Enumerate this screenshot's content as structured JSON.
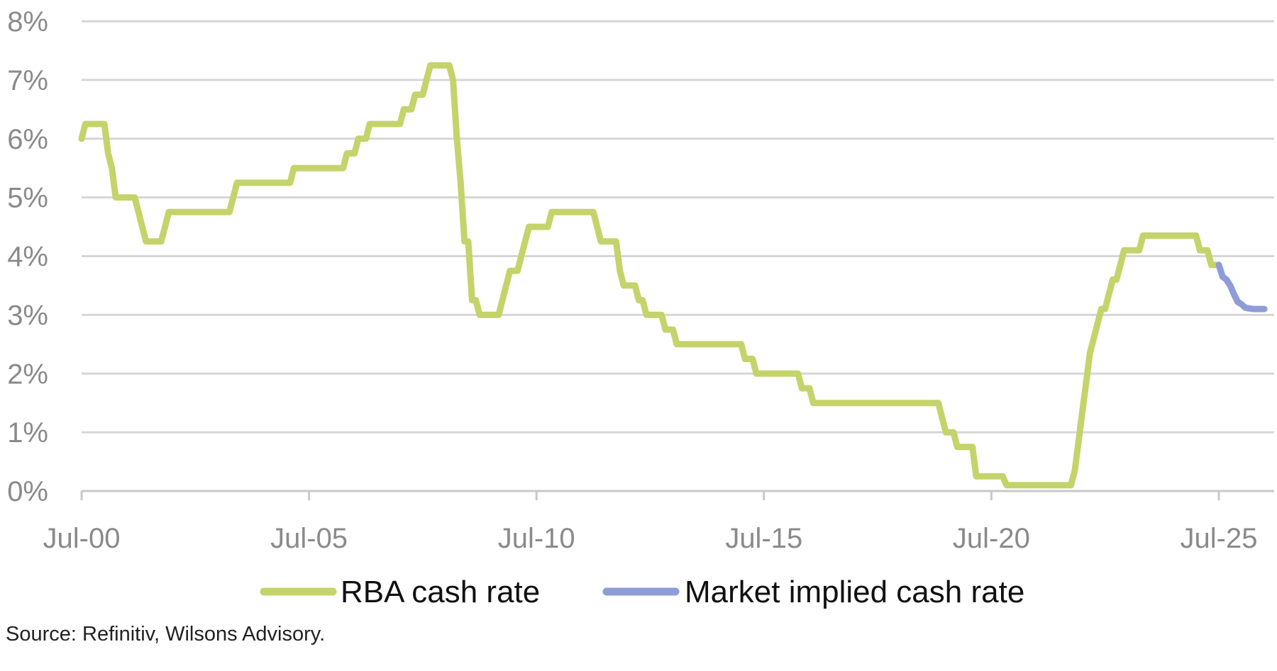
{
  "chart_data": {
    "type": "line",
    "title": "",
    "xlabel": "",
    "ylabel": "",
    "x_range": [
      "2000-07",
      "2026-07"
    ],
    "ylim": [
      0,
      8
    ],
    "y_ticks": [
      0,
      1,
      2,
      3,
      4,
      5,
      6,
      7,
      8
    ],
    "y_tick_labels": [
      "0%",
      "1%",
      "2%",
      "3%",
      "4%",
      "5%",
      "6%",
      "7%",
      "8%"
    ],
    "x_ticks": [
      "2000-07",
      "2005-07",
      "2010-07",
      "2015-07",
      "2020-07",
      "2025-07"
    ],
    "x_tick_labels": [
      "Jul-00",
      "Jul-05",
      "Jul-10",
      "Jul-15",
      "Jul-20",
      "Jul-25"
    ],
    "grid": "horizontal",
    "legend_position": "bottom",
    "series": [
      {
        "name": "RBA cash rate",
        "color": "#c5d36b",
        "points": [
          [
            "2000-07",
            6.0
          ],
          [
            "2000-08",
            6.25
          ],
          [
            "2000-12",
            6.25
          ],
          [
            "2001-01",
            6.25
          ],
          [
            "2001-02",
            5.75
          ],
          [
            "2001-03",
            5.5
          ],
          [
            "2001-04",
            5.0
          ],
          [
            "2001-09",
            5.0
          ],
          [
            "2001-10",
            4.75
          ],
          [
            "2001-11",
            4.5
          ],
          [
            "2001-12",
            4.25
          ],
          [
            "2002-04",
            4.25
          ],
          [
            "2002-05",
            4.5
          ],
          [
            "2002-06",
            4.75
          ],
          [
            "2003-10",
            4.75
          ],
          [
            "2003-11",
            5.0
          ],
          [
            "2003-12",
            5.25
          ],
          [
            "2005-02",
            5.25
          ],
          [
            "2005-03",
            5.5
          ],
          [
            "2006-04",
            5.5
          ],
          [
            "2006-05",
            5.75
          ],
          [
            "2006-07",
            5.75
          ],
          [
            "2006-08",
            6.0
          ],
          [
            "2006-10",
            6.0
          ],
          [
            "2006-11",
            6.25
          ],
          [
            "2007-07",
            6.25
          ],
          [
            "2007-08",
            6.5
          ],
          [
            "2007-10",
            6.5
          ],
          [
            "2007-11",
            6.75
          ],
          [
            "2008-01",
            6.75
          ],
          [
            "2008-02",
            7.0
          ],
          [
            "2008-03",
            7.25
          ],
          [
            "2008-08",
            7.25
          ],
          [
            "2008-09",
            7.0
          ],
          [
            "2008-10",
            6.0
          ],
          [
            "2008-11",
            5.25
          ],
          [
            "2008-12",
            4.25
          ],
          [
            "2009-01",
            4.25
          ],
          [
            "2009-02",
            3.25
          ],
          [
            "2009-03",
            3.25
          ],
          [
            "2009-04",
            3.0
          ],
          [
            "2009-09",
            3.0
          ],
          [
            "2009-10",
            3.25
          ],
          [
            "2009-11",
            3.5
          ],
          [
            "2009-12",
            3.75
          ],
          [
            "2010-02",
            3.75
          ],
          [
            "2010-03",
            4.0
          ],
          [
            "2010-04",
            4.25
          ],
          [
            "2010-05",
            4.5
          ],
          [
            "2010-10",
            4.5
          ],
          [
            "2010-11",
            4.75
          ],
          [
            "2011-10",
            4.75
          ],
          [
            "2011-11",
            4.5
          ],
          [
            "2011-12",
            4.25
          ],
          [
            "2012-04",
            4.25
          ],
          [
            "2012-05",
            3.75
          ],
          [
            "2012-06",
            3.5
          ],
          [
            "2012-09",
            3.5
          ],
          [
            "2012-10",
            3.25
          ],
          [
            "2012-11",
            3.25
          ],
          [
            "2012-12",
            3.0
          ],
          [
            "2013-04",
            3.0
          ],
          [
            "2013-05",
            2.75
          ],
          [
            "2013-07",
            2.75
          ],
          [
            "2013-08",
            2.5
          ],
          [
            "2015-01",
            2.5
          ],
          [
            "2015-02",
            2.25
          ],
          [
            "2015-04",
            2.25
          ],
          [
            "2015-05",
            2.0
          ],
          [
            "2016-04",
            2.0
          ],
          [
            "2016-05",
            1.75
          ],
          [
            "2016-07",
            1.75
          ],
          [
            "2016-08",
            1.5
          ],
          [
            "2019-05",
            1.5
          ],
          [
            "2019-06",
            1.25
          ],
          [
            "2019-07",
            1.0
          ],
          [
            "2019-09",
            1.0
          ],
          [
            "2019-10",
            0.75
          ],
          [
            "2020-02",
            0.75
          ],
          [
            "2020-03",
            0.25
          ],
          [
            "2020-10",
            0.25
          ],
          [
            "2020-11",
            0.1
          ],
          [
            "2022-04",
            0.1
          ],
          [
            "2022-05",
            0.35
          ],
          [
            "2022-06",
            0.85
          ],
          [
            "2022-07",
            1.35
          ],
          [
            "2022-08",
            1.85
          ],
          [
            "2022-09",
            2.35
          ],
          [
            "2022-10",
            2.6
          ],
          [
            "2022-11",
            2.85
          ],
          [
            "2022-12",
            3.1
          ],
          [
            "2023-01",
            3.1
          ],
          [
            "2023-02",
            3.35
          ],
          [
            "2023-03",
            3.6
          ],
          [
            "2023-04",
            3.6
          ],
          [
            "2023-05",
            3.85
          ],
          [
            "2023-06",
            4.1
          ],
          [
            "2023-10",
            4.1
          ],
          [
            "2023-11",
            4.35
          ],
          [
            "2025-01",
            4.35
          ],
          [
            "2025-02",
            4.1
          ],
          [
            "2025-04",
            4.1
          ],
          [
            "2025-05",
            3.85
          ],
          [
            "2025-07",
            3.85
          ]
        ]
      },
      {
        "name": "Market implied cash rate",
        "color": "#8e9cd8",
        "points": [
          [
            "2025-07",
            3.85
          ],
          [
            "2025-08",
            3.65
          ],
          [
            "2025-09",
            3.6
          ],
          [
            "2025-10",
            3.5
          ],
          [
            "2025-11",
            3.35
          ],
          [
            "2025-12",
            3.22
          ],
          [
            "2026-01",
            3.18
          ],
          [
            "2026-02",
            3.12
          ],
          [
            "2026-04",
            3.1
          ],
          [
            "2026-07",
            3.1
          ]
        ]
      }
    ]
  },
  "source_note": "Source: Refinitiv, Wilsons Advisory."
}
